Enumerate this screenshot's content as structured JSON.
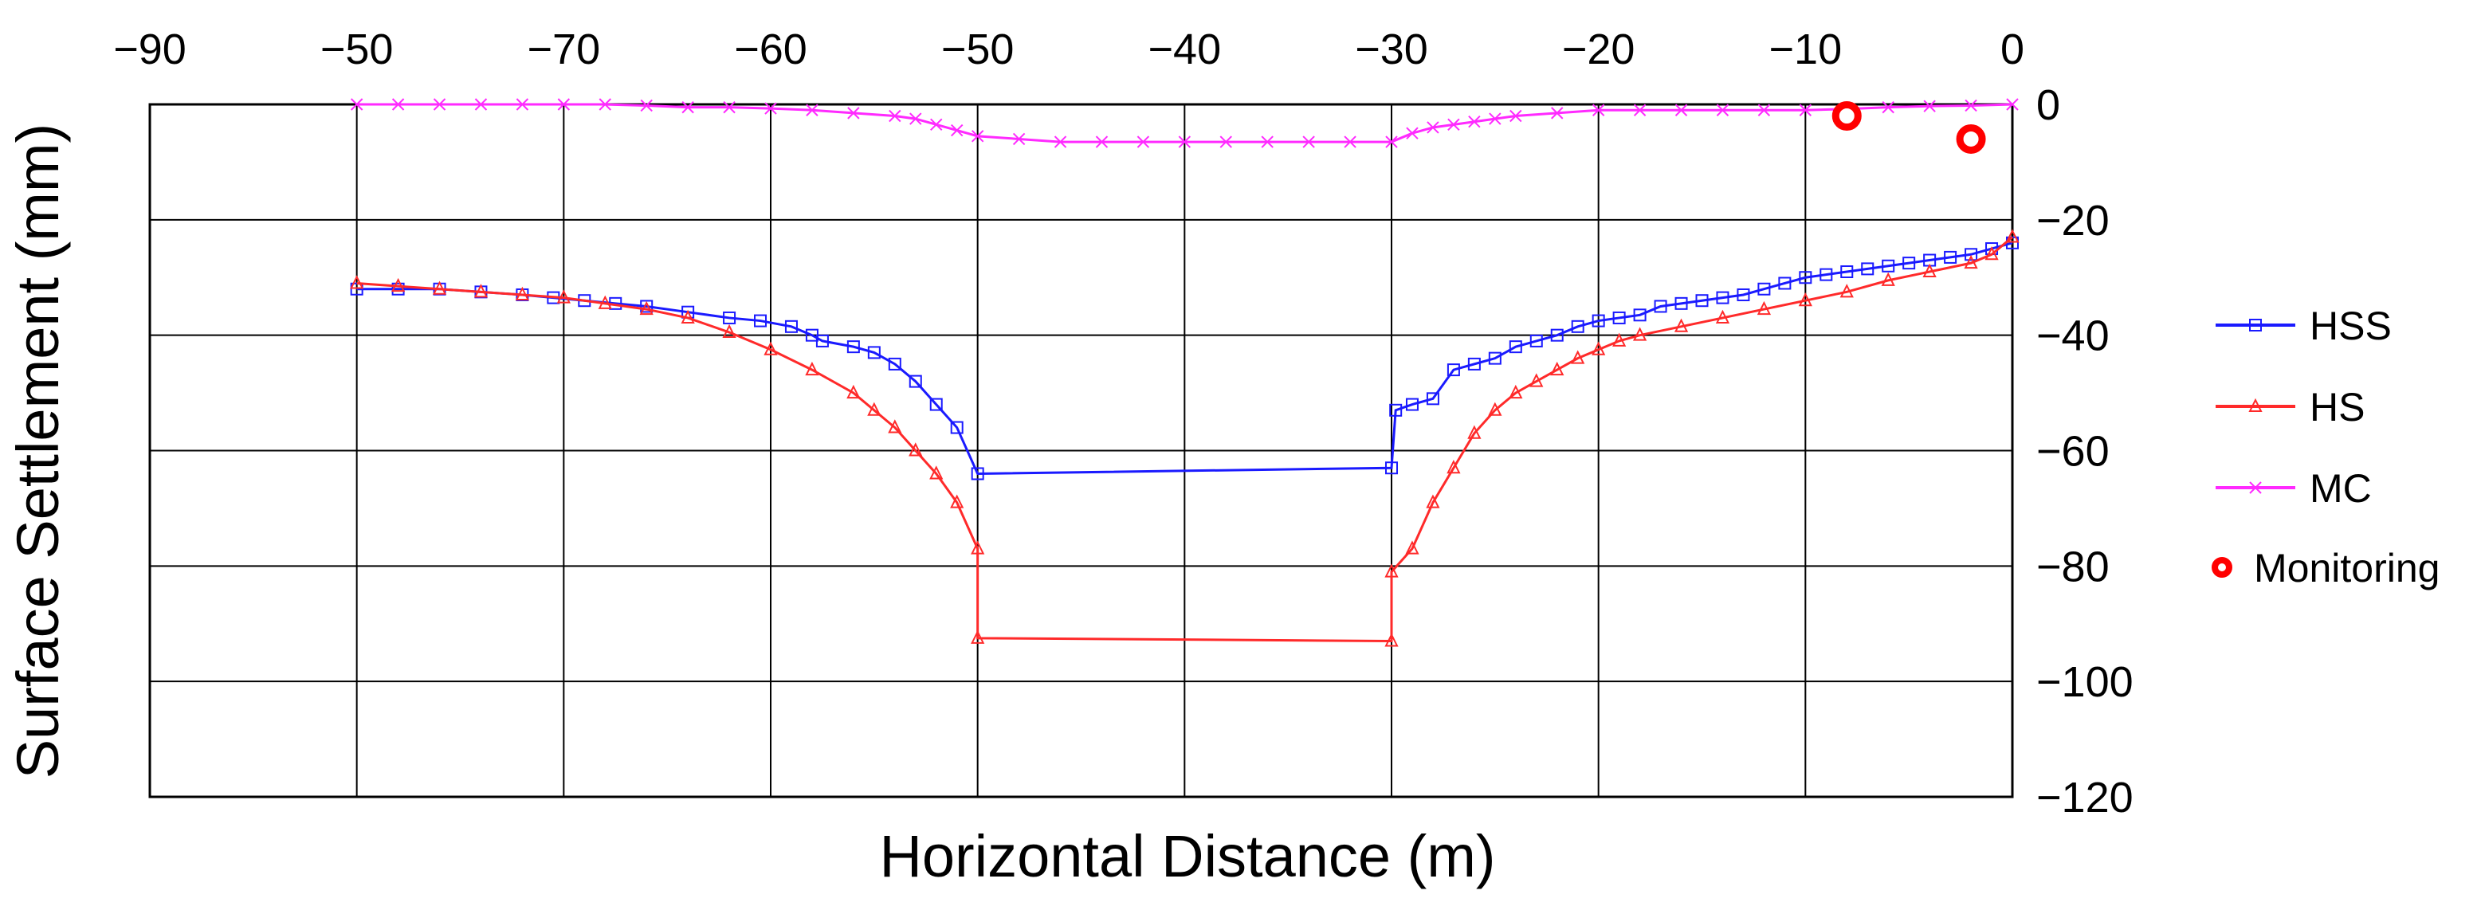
{
  "chart_data": {
    "type": "line",
    "xlabel": "Horizontal Distance (m)",
    "ylabel": "Surface Settlement (mm)",
    "x_tick_labels": [
      "−90",
      "−50",
      "−70",
      "−60",
      "−50",
      "−40",
      "−30",
      "−20",
      "−10",
      "0"
    ],
    "y_tick_labels": [
      "0",
      "−20",
      "−40",
      "−60",
      "−80",
      "−100",
      "−120"
    ],
    "y_ticks": [
      0,
      -20,
      -40,
      -60,
      -80,
      -100,
      -120
    ],
    "x_range": [
      -90,
      0
    ],
    "y_range": [
      -120,
      0
    ],
    "grid": true,
    "legend_position": "right",
    "series": [
      {
        "name": "HSS",
        "color": "#1a1aff",
        "marker": "square",
        "x": [
          -80,
          -78,
          -76,
          -74,
          -72,
          -70.5,
          -69,
          -67.5,
          -66,
          -64,
          -62,
          -60.5,
          -59,
          -58,
          -57.5,
          -56,
          -55,
          -54,
          -53,
          -52,
          -51,
          -50,
          -30,
          -29.8,
          -29,
          -28,
          -27,
          -26,
          -25,
          -24,
          -23,
          -22,
          -21,
          -20,
          -19,
          -18,
          -17,
          -16,
          -15,
          -14,
          -13,
          -12,
          -11,
          -10,
          -9,
          -8,
          -7,
          -6,
          -5,
          -4,
          -3,
          -2,
          -1,
          0
        ],
        "y": [
          -32,
          -32,
          -32,
          -32.5,
          -33,
          -33.5,
          -34,
          -34.5,
          -35,
          -36,
          -37,
          -37.5,
          -38.5,
          -40,
          -41,
          -42,
          -43,
          -45,
          -48,
          -52,
          -56,
          -64,
          -63,
          -53,
          -52,
          -51,
          -46,
          -45,
          -44,
          -42,
          -41,
          -40,
          -38.5,
          -37.5,
          -37,
          -36.5,
          -35,
          -34.5,
          -34,
          -33.5,
          -33,
          -32,
          -31,
          -30,
          -29.5,
          -29,
          -28.5,
          -28,
          -27.5,
          -27,
          -26.5,
          -26,
          -25,
          -24
        ]
      },
      {
        "name": "HS",
        "color": "#ff2a2a",
        "marker": "triangle",
        "x": [
          -80,
          -78,
          -76,
          -74,
          -72,
          -70,
          -68,
          -66,
          -64,
          -62,
          -60,
          -58,
          -56,
          -55,
          -54,
          -53,
          -52,
          -51,
          -50,
          -50,
          -30,
          -30,
          -29,
          -28,
          -27,
          -26,
          -25,
          -24,
          -23,
          -22,
          -21,
          -20,
          -19,
          -18,
          -16,
          -14,
          -12,
          -10,
          -8,
          -6,
          -4,
          -2,
          -1,
          0
        ],
        "y": [
          -31,
          -31.5,
          -32,
          -32.5,
          -33,
          -33.5,
          -34.5,
          -35.5,
          -37,
          -39.5,
          -42.5,
          -46,
          -50,
          -53,
          -56,
          -60,
          -64,
          -69,
          -77,
          -92.5,
          -93,
          -81,
          -77,
          -69,
          -63,
          -57,
          -53,
          -50,
          -48,
          -46,
          -44,
          -42.5,
          -41,
          -40,
          -38.5,
          -37,
          -35.5,
          -34,
          -32.5,
          -30.5,
          -29,
          -27.5,
          -26,
          -23
        ]
      },
      {
        "name": "MC",
        "color": "#ff2aff",
        "marker": "x",
        "x": [
          -80,
          -78,
          -76,
          -74,
          -72,
          -70,
          -68,
          -66,
          -64,
          -62,
          -60,
          -58,
          -56,
          -54,
          -53,
          -52,
          -51,
          -50,
          -48,
          -46,
          -44,
          -42,
          -40,
          -38,
          -36,
          -34,
          -32,
          -30,
          -29,
          -28,
          -27,
          -26,
          -25,
          -24,
          -22,
          -20,
          -18,
          -16,
          -14,
          -12,
          -10,
          -8,
          -6,
          -4,
          -2,
          0
        ],
        "y": [
          0,
          0,
          0,
          0,
          0,
          0,
          0,
          -0.2,
          -0.5,
          -0.5,
          -0.7,
          -1,
          -1.5,
          -2,
          -2.5,
          -3.5,
          -4.5,
          -5.5,
          -6,
          -6.5,
          -6.5,
          -6.5,
          -6.5,
          -6.5,
          -6.5,
          -6.5,
          -6.5,
          -6.5,
          -5,
          -4,
          -3.5,
          -3,
          -2.5,
          -2,
          -1.5,
          -1,
          -1,
          -1,
          -1,
          -1,
          -1,
          -0.8,
          -0.5,
          -0.3,
          -0.2,
          0
        ]
      },
      {
        "name": "Monitoring",
        "color": "#ff0000",
        "marker": "circle",
        "x": [
          -8,
          -2
        ],
        "y": [
          -2,
          -6
        ]
      }
    ]
  }
}
